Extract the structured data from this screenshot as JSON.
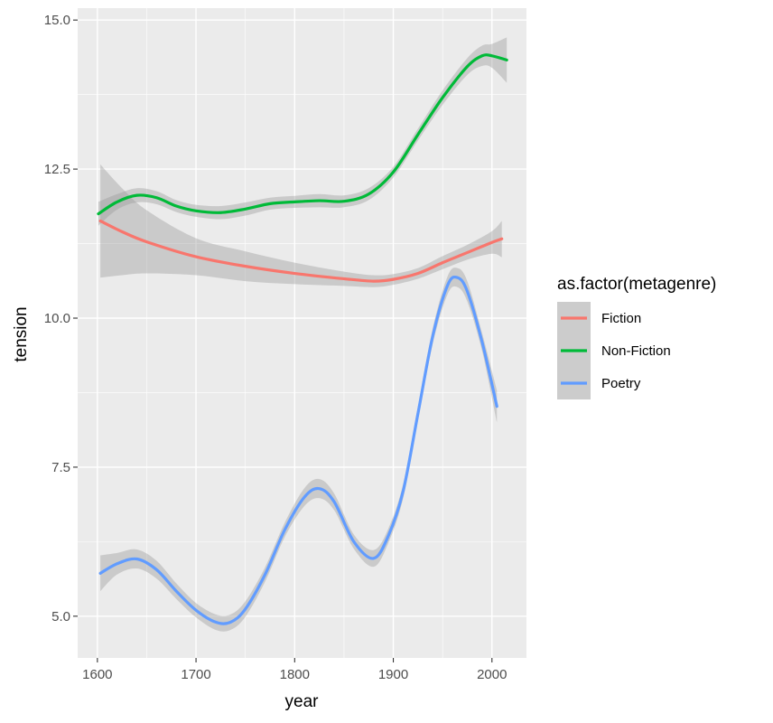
{
  "chart_data": {
    "type": "line",
    "xlabel": "year",
    "ylabel": "tension",
    "xlim": [
      1580,
      2035
    ],
    "ylim": [
      4.3,
      15.2
    ],
    "x_ticks": [
      1600,
      1700,
      1800,
      1900,
      2000
    ],
    "x_tick_labels": [
      "1600",
      "1700",
      "1800",
      "1900",
      "2000"
    ],
    "y_ticks": [
      5.0,
      7.5,
      10.0,
      12.5,
      15.0
    ],
    "y_tick_labels": [
      "5.0",
      "7.5",
      "10.0",
      "12.5",
      "15.0"
    ],
    "grid": true,
    "legend": {
      "title": "as.factor(metagenre)",
      "position": "right"
    },
    "series": [
      {
        "name": "Fiction",
        "color": "#F8766D",
        "x": [
          1603,
          1625,
          1650,
          1700,
          1750,
          1800,
          1850,
          1880,
          1900,
          1925,
          1950,
          1975,
          2000,
          2010
        ],
        "y": [
          11.63,
          11.45,
          11.28,
          11.03,
          10.87,
          10.75,
          10.66,
          10.62,
          10.65,
          10.75,
          10.93,
          11.1,
          11.27,
          11.33
        ],
        "lower": [
          10.68,
          10.72,
          10.75,
          10.72,
          10.62,
          10.57,
          10.54,
          10.52,
          10.56,
          10.66,
          10.82,
          10.98,
          11.08,
          11.02
        ],
        "upper": [
          12.58,
          12.18,
          11.81,
          11.34,
          11.12,
          10.93,
          10.78,
          10.72,
          10.74,
          10.84,
          11.04,
          11.23,
          11.46,
          11.63
        ]
      },
      {
        "name": "Non-Fiction",
        "color": "#00BA38",
        "x": [
          1601,
          1620,
          1640,
          1660,
          1680,
          1700,
          1725,
          1750,
          1775,
          1800,
          1825,
          1850,
          1875,
          1900,
          1925,
          1950,
          1975,
          1990,
          2000,
          2015
        ],
        "y": [
          11.75,
          11.95,
          12.06,
          12.02,
          11.88,
          11.8,
          11.77,
          11.83,
          11.92,
          11.95,
          11.97,
          11.96,
          12.08,
          12.45,
          13.08,
          13.7,
          14.22,
          14.4,
          14.4,
          14.33
        ],
        "lower": [
          11.55,
          11.82,
          11.94,
          11.91,
          11.78,
          11.7,
          11.66,
          11.72,
          11.82,
          11.85,
          11.86,
          11.86,
          11.98,
          12.36,
          12.98,
          13.58,
          14.08,
          14.23,
          14.2,
          13.95
        ],
        "upper": [
          11.95,
          12.08,
          12.18,
          12.13,
          11.98,
          11.9,
          11.88,
          11.94,
          12.02,
          12.05,
          12.08,
          12.06,
          12.18,
          12.54,
          13.18,
          13.82,
          14.36,
          14.57,
          14.6,
          14.71
        ]
      },
      {
        "name": "Poetry",
        "color": "#619CFF",
        "x": [
          1603,
          1620,
          1640,
          1660,
          1680,
          1700,
          1720,
          1735,
          1750,
          1770,
          1790,
          1810,
          1825,
          1840,
          1860,
          1880,
          1895,
          1910,
          1925,
          1940,
          1955,
          1965,
          1975,
          1990,
          2005
        ],
        "y": [
          5.72,
          5.88,
          5.96,
          5.78,
          5.42,
          5.1,
          4.9,
          4.9,
          5.12,
          5.7,
          6.45,
          7.0,
          7.14,
          6.92,
          6.25,
          5.97,
          6.35,
          7.1,
          8.4,
          9.7,
          10.55,
          10.68,
          10.45,
          9.6,
          8.52
        ],
        "lower": [
          5.42,
          5.7,
          5.8,
          5.63,
          5.29,
          4.98,
          4.77,
          4.77,
          4.99,
          5.58,
          6.33,
          6.85,
          6.98,
          6.78,
          6.13,
          5.83,
          6.23,
          6.98,
          8.28,
          9.57,
          10.4,
          10.52,
          10.28,
          9.45,
          8.25
        ],
        "upper": [
          6.02,
          6.06,
          6.12,
          5.93,
          5.55,
          5.22,
          5.03,
          5.03,
          5.25,
          5.82,
          6.57,
          7.15,
          7.3,
          7.06,
          6.37,
          6.11,
          6.47,
          7.22,
          8.52,
          9.83,
          10.7,
          10.84,
          10.62,
          9.75,
          8.79
        ]
      }
    ]
  }
}
